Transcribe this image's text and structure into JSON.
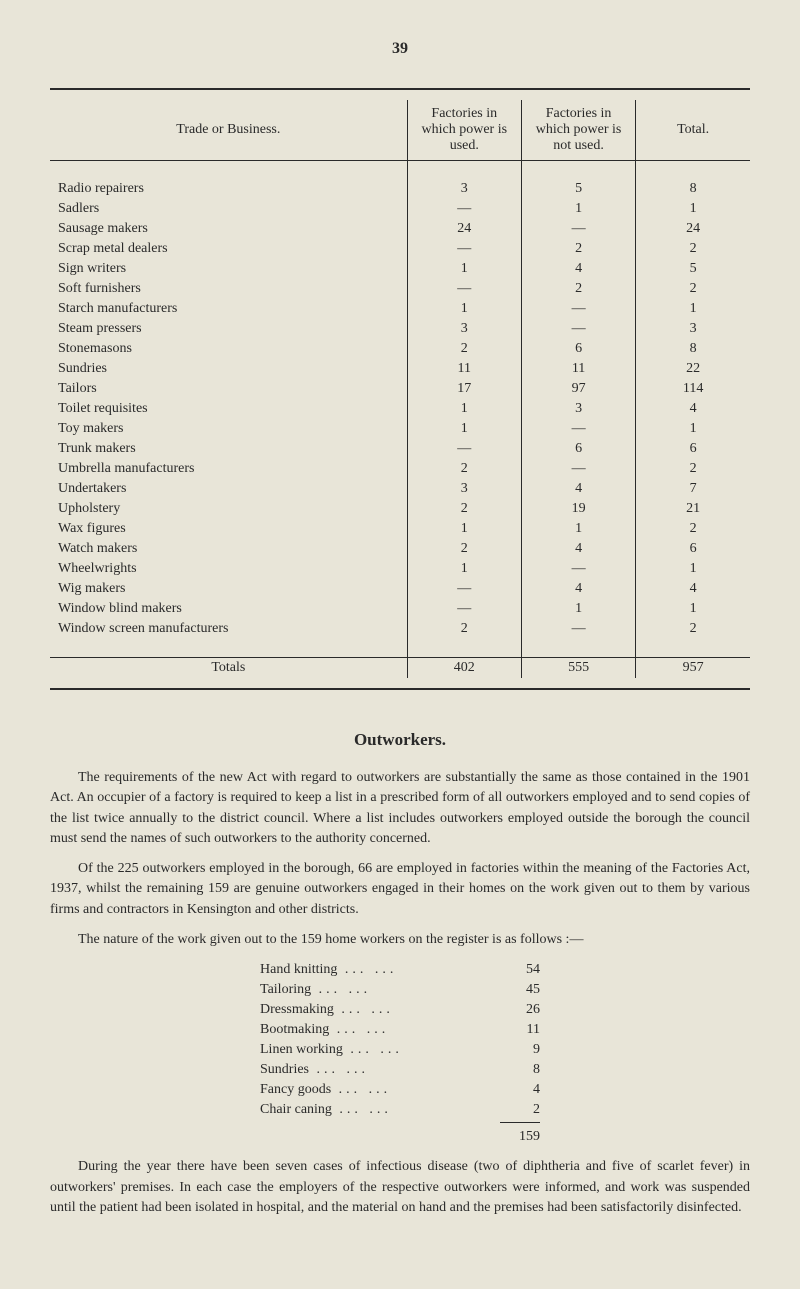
{
  "page_number": "39",
  "table": {
    "headers": {
      "trade": "Trade or Business.",
      "power_used": "Factories in which power is used.",
      "power_not_used": "Factories in which power is not used.",
      "total": "Total."
    },
    "rows": [
      {
        "label": "Radio repairers",
        "a": "3",
        "b": "5",
        "c": "8"
      },
      {
        "label": "Sadlers",
        "a": "—",
        "b": "1",
        "c": "1"
      },
      {
        "label": "Sausage makers",
        "a": "24",
        "b": "—",
        "c": "24"
      },
      {
        "label": "Scrap metal dealers",
        "a": "—",
        "b": "2",
        "c": "2"
      },
      {
        "label": "Sign writers",
        "a": "1",
        "b": "4",
        "c": "5"
      },
      {
        "label": "Soft furnishers",
        "a": "—",
        "b": "2",
        "c": "2"
      },
      {
        "label": "Starch manufacturers",
        "a": "1",
        "b": "—",
        "c": "1"
      },
      {
        "label": "Steam pressers",
        "a": "3",
        "b": "—",
        "c": "3"
      },
      {
        "label": "Stonemasons",
        "a": "2",
        "b": "6",
        "c": "8"
      },
      {
        "label": "Sundries",
        "a": "11",
        "b": "11",
        "c": "22"
      },
      {
        "label": "Tailors",
        "a": "17",
        "b": "97",
        "c": "114"
      },
      {
        "label": "Toilet requisites",
        "a": "1",
        "b": "3",
        "c": "4"
      },
      {
        "label": "Toy makers",
        "a": "1",
        "b": "—",
        "c": "1"
      },
      {
        "label": "Trunk makers",
        "a": "—",
        "b": "6",
        "c": "6"
      },
      {
        "label": "Umbrella manufacturers",
        "a": "2",
        "b": "—",
        "c": "2"
      },
      {
        "label": "Undertakers",
        "a": "3",
        "b": "4",
        "c": "7"
      },
      {
        "label": "Upholstery",
        "a": "2",
        "b": "19",
        "c": "21"
      },
      {
        "label": "Wax figures",
        "a": "1",
        "b": "1",
        "c": "2"
      },
      {
        "label": "Watch makers",
        "a": "2",
        "b": "4",
        "c": "6"
      },
      {
        "label": "Wheelwrights",
        "a": "1",
        "b": "—",
        "c": "1"
      },
      {
        "label": "Wig makers",
        "a": "—",
        "b": "4",
        "c": "4"
      },
      {
        "label": "Window blind makers",
        "a": "—",
        "b": "1",
        "c": "1"
      },
      {
        "label": "Window screen manufacturers",
        "a": "2",
        "b": "—",
        "c": "2"
      }
    ],
    "totals": {
      "label": "Totals",
      "a": "402",
      "b": "555",
      "c": "957"
    }
  },
  "section_title": "Outworkers.",
  "paragraphs": {
    "p1": "The requirements of the new Act with regard to outworkers are substantially the same as those contained in the 1901 Act. An occupier of a factory is required to keep a list in a prescribed form of all outworkers employed and to send copies of the list twice annually to the district council. Where a list includes outworkers employed outside the borough the council must send the names of such outworkers to the authority concerned.",
    "p2": "Of the 225 outworkers employed in the borough, 66 are employed in factories within the meaning of the Factories Act, 1937, whilst the remaining 159 are genuine outworkers engaged in their homes on the work given out to them by various firms and contractors in Kensington and other districts.",
    "p3": "The nature of the work given out to the 159 home workers on the register is as follows :—",
    "p4": "During the year there have been seven cases of infectious disease (two of diphtheria and five of scarlet fever) in outworkers' premises. In each case the employers of the respective outworkers were informed, and work was suspended until the patient had been isolated in hospital, and the material on hand and the premises had been satisfactorily disinfected."
  },
  "small_table": {
    "rows": [
      {
        "label": "Hand knitting",
        "n": "54"
      },
      {
        "label": "Tailoring",
        "n": "45"
      },
      {
        "label": "Dressmaking",
        "n": "26"
      },
      {
        "label": "Bootmaking",
        "n": "11"
      },
      {
        "label": "Linen working",
        "n": "9"
      },
      {
        "label": "Sundries",
        "n": "8"
      },
      {
        "label": "Fancy goods",
        "n": "4"
      },
      {
        "label": "Chair caning",
        "n": "2"
      }
    ],
    "total": "159"
  },
  "style": {
    "background": "#e8e5d8",
    "text_color": "#2a2a2a",
    "body_fontsize": 14,
    "title_fontsize": 17
  }
}
